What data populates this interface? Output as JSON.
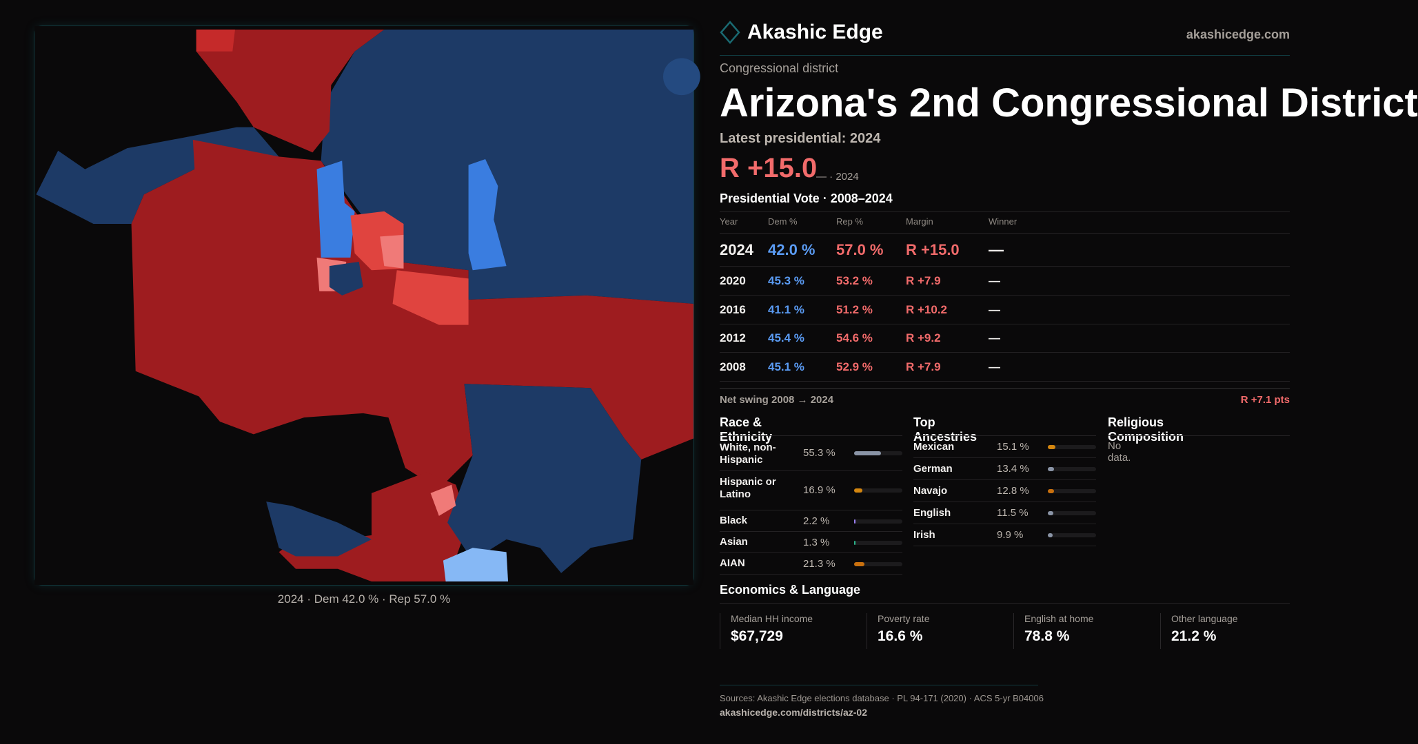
{
  "brand": {
    "name": "Akashic Edge",
    "site": "akashicedge.com",
    "logo_icon": "diamond-outline-icon"
  },
  "kicker": "Congressional district",
  "title": "Arizona's 2nd Congressional District",
  "latest_label": "Latest presidential: 2024",
  "headline_margin": "R +15.0",
  "headline_sub": "— · 2024",
  "vote_section": "Presidential Vote · 2008–2024",
  "vote_table": {
    "headers": [
      "Year",
      "Dem %",
      "Rep %",
      "Margin",
      "Winner"
    ],
    "rows": [
      {
        "year": "2024",
        "dem": "42.0 %",
        "rep": "57.0 %",
        "margin": "R +15.0",
        "winner": "—"
      },
      {
        "year": "2020",
        "dem": "45.3 %",
        "rep": "53.2 %",
        "margin": "R +7.9",
        "winner": "—"
      },
      {
        "year": "2016",
        "dem": "41.1 %",
        "rep": "51.2 %",
        "margin": "R +10.2",
        "winner": "—"
      },
      {
        "year": "2012",
        "dem": "45.4 %",
        "rep": "54.6 %",
        "margin": "R +9.2",
        "winner": "—"
      },
      {
        "year": "2008",
        "dem": "45.1 %",
        "rep": "52.9 %",
        "margin": "R +7.9",
        "winner": "—"
      }
    ]
  },
  "net_swing": {
    "label": "Net swing 2008 → 2024",
    "value": "R +7.1 pts"
  },
  "race": {
    "title": "Race & Ethnicity",
    "items": [
      {
        "label": "White, non-Hispanic",
        "value": "55.3 %",
        "pct": 55.3,
        "color": "#8a94a6"
      },
      {
        "label": "Hispanic or Latino",
        "value": "16.9 %",
        "pct": 16.9,
        "color": "#d4860f"
      },
      {
        "label": "Black",
        "value": "2.2 %",
        "pct": 2.2,
        "color": "#9a7ff0"
      },
      {
        "label": "Asian",
        "value": "1.3 %",
        "pct": 1.3,
        "color": "#2bb38a"
      },
      {
        "label": "AIAN",
        "value": "21.3 %",
        "pct": 21.3,
        "color": "#c9700e"
      }
    ]
  },
  "ancestry": {
    "title": "Top Ancestries",
    "items": [
      {
        "label": "Mexican",
        "value": "15.1 %",
        "pct": 15.1,
        "color": "#d4860f"
      },
      {
        "label": "German",
        "value": "13.4 %",
        "pct": 13.4,
        "color": "#8a94a6"
      },
      {
        "label": "Navajo",
        "value": "12.8 %",
        "pct": 12.8,
        "color": "#c9700e"
      },
      {
        "label": "English",
        "value": "11.5 %",
        "pct": 11.5,
        "color": "#8a94a6"
      },
      {
        "label": "Irish",
        "value": "9.9 %",
        "pct": 9.9,
        "color": "#8a94a6"
      }
    ]
  },
  "religion": {
    "title": "Religious Composition",
    "empty": "No data."
  },
  "econ": {
    "title": "Economics & Language",
    "stats": [
      {
        "label": "Median HH income",
        "value": "$67,729"
      },
      {
        "label": "Poverty rate",
        "value": "16.6 %"
      },
      {
        "label": "English at home",
        "value": "78.8 %"
      },
      {
        "label": "Other language",
        "value": "21.2 %"
      }
    ]
  },
  "sources": "Sources: Akashic Edge elections database · PL 94-171 (2020) · ACS 5-yr B04006",
  "url": "akashicedge.com/districts/az-02",
  "map": {
    "caption": "2024 · Dem 42.0 % · Rep 57.0 %",
    "colors": {
      "rep_strong": "#9e1c1f",
      "rep_light": "#e0443f",
      "rep_pale": "#f07a78",
      "dem_strong": "#1d3a66",
      "dem_light": "#3a7de0",
      "dem_pale": "#86b8f5"
    }
  }
}
